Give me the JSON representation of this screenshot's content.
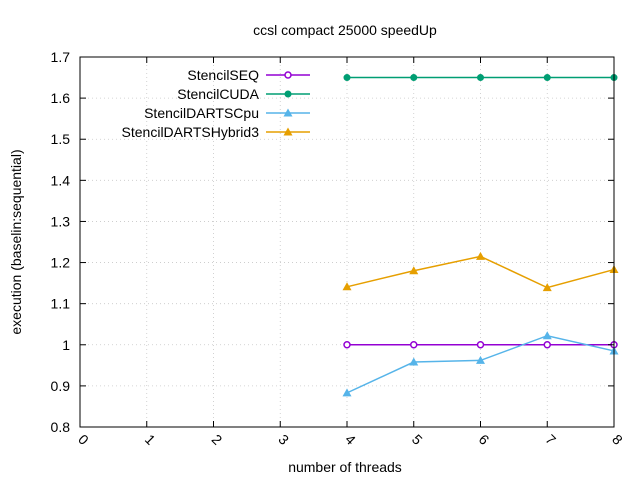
{
  "chart_data": {
    "type": "line",
    "title": "ccsl compact 25000 speedUp",
    "xlabel": "number of threads",
    "ylabel": "execution (baselin:sequential)",
    "xlim": [
      0,
      8
    ],
    "ylim": [
      0.8,
      1.7
    ],
    "xticks": [
      "0",
      "1",
      "2",
      "3",
      "4",
      "5",
      "6",
      "7",
      "8"
    ],
    "yticks": [
      "0.8",
      "0.9",
      "1",
      "1.1",
      "1.2",
      "1.3",
      "1.4",
      "1.5",
      "1.6",
      "1.7"
    ],
    "grid": true,
    "legend_position": "top-left",
    "series": [
      {
        "name": "StencilSEQ",
        "color": "#9400d3",
        "marker": "circle-open",
        "x": [
          4,
          5,
          6,
          7,
          8
        ],
        "y": [
          1.0,
          1.0,
          1.0,
          1.0,
          1.0
        ]
      },
      {
        "name": "StencilCUDA",
        "color": "#009e73",
        "marker": "circle-filled",
        "x": [
          4,
          5,
          6,
          7,
          8
        ],
        "y": [
          1.65,
          1.65,
          1.65,
          1.65,
          1.65
        ]
      },
      {
        "name": "StencilDARTSCpu",
        "color": "#56b4e9",
        "marker": "triangle",
        "x": [
          4,
          5,
          6,
          7,
          8
        ],
        "y": [
          0.883,
          0.958,
          0.962,
          1.022,
          0.985
        ]
      },
      {
        "name": "StencilDARTSHybrid3",
        "color": "#e69f00",
        "marker": "triangle",
        "x": [
          4,
          5,
          6,
          7,
          8
        ],
        "y": [
          1.141,
          1.18,
          1.215,
          1.139,
          1.183
        ]
      }
    ]
  }
}
